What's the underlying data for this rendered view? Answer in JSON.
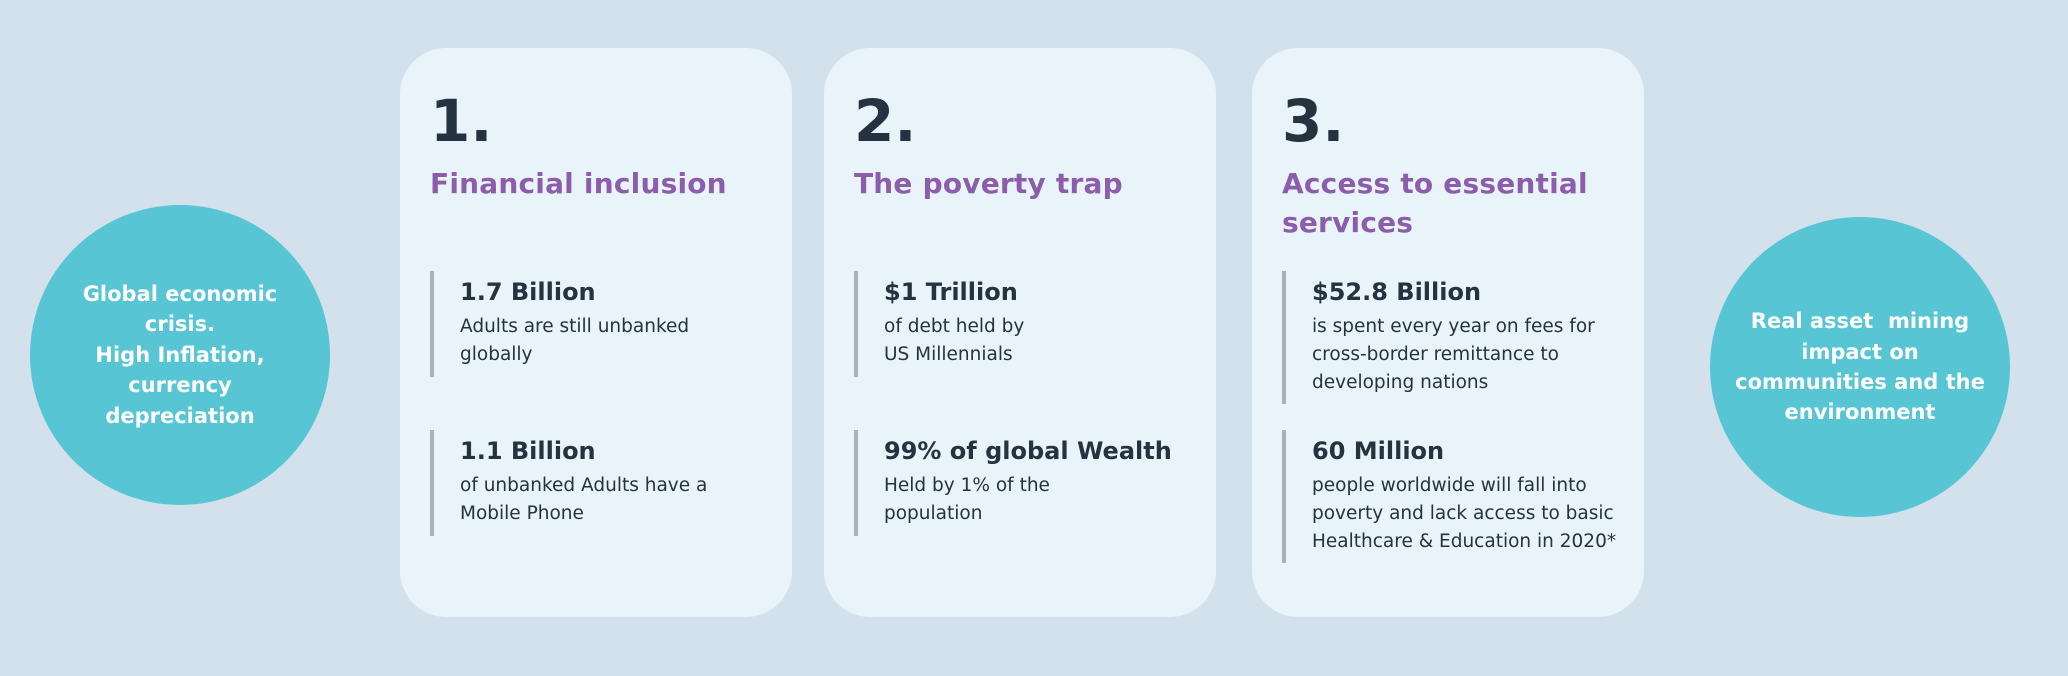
{
  "slide": {
    "colors": {
      "background": "#d3e1ec",
      "card_background": "#e9f3fa",
      "bubble_teal": "#58c5d5",
      "heading_purple": "#8b5dab",
      "text_dark": "#24333f",
      "stat_bar_gray": "#a6b2b9",
      "bubble_text_white": "#ffffff"
    },
    "left_bubble": {
      "text": "Global economic\ncrisis.\nHigh Inflation,\ncurrency\ndepreciation"
    },
    "right_bubble": {
      "text": "Real asset  mining\nimpact on\ncommunities and the\nenvironment"
    },
    "cards": [
      {
        "number": "1.",
        "title": "Financial inclusion",
        "stats": [
          {
            "value": "1.7 Billion",
            "description": "Adults are still unbanked\nglobally"
          },
          {
            "value": "1.1 Billion",
            "description": "of unbanked Adults have a\nMobile Phone"
          }
        ]
      },
      {
        "number": "2.",
        "title": "The poverty trap",
        "stats": [
          {
            "value": "$1 Trillion",
            "description": "of debt held by\nUS Millennials"
          },
          {
            "value": "99% of global Wealth",
            "description": "Held by 1% of the\npopulation"
          }
        ]
      },
      {
        "number": "3.",
        "title": "Access to essential\nservices",
        "stats": [
          {
            "value": "$52.8 Billion",
            "description": "is spent every year on fees for\ncross-border remittance to\ndeveloping nations"
          },
          {
            "value": "60 Million",
            "description": "people worldwide will fall into\npoverty and lack access to basic\nHealthcare & Education in 2020*"
          }
        ]
      }
    ]
  }
}
